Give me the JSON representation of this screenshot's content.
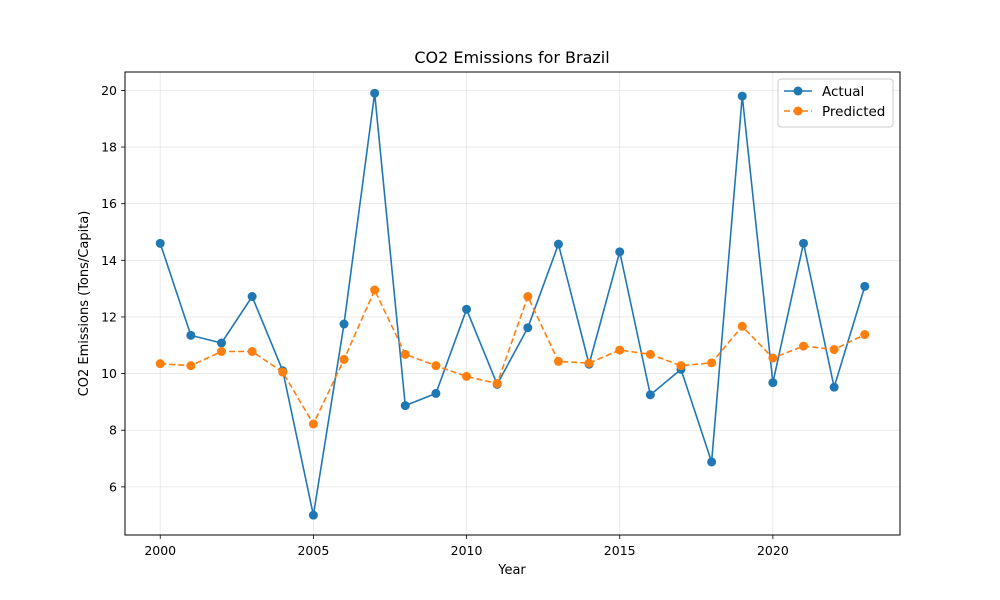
{
  "chart_data": {
    "type": "line",
    "title": "CO2 Emissions for Brazil",
    "xlabel": "Year",
    "ylabel": "CO2 Emissions (Tons/Capita)",
    "xlim": [
      1998.85,
      2024.15
    ],
    "ylim": [
      4.3,
      20.65
    ],
    "xticks": [
      2000,
      2005,
      2010,
      2015,
      2020
    ],
    "yticks": [
      6,
      8,
      10,
      12,
      14,
      16,
      18,
      20
    ],
    "grid": true,
    "legend_position": "top-right",
    "x": [
      2000,
      2001,
      2002,
      2003,
      2004,
      2005,
      2006,
      2007,
      2008,
      2009,
      2010,
      2011,
      2012,
      2013,
      2014,
      2015,
      2016,
      2017,
      2018,
      2019,
      2020,
      2021,
      2022,
      2023
    ],
    "series": [
      {
        "name": "Actual",
        "color": "#1f77b4",
        "line_style": "solid",
        "values": [
          14.6,
          11.35,
          11.08,
          12.72,
          10.1,
          5.0,
          11.75,
          19.9,
          8.87,
          9.3,
          12.27,
          9.62,
          11.62,
          14.57,
          10.33,
          14.3,
          9.25,
          10.15,
          6.88,
          19.8,
          9.68,
          14.6,
          9.52,
          13.08
        ]
      },
      {
        "name": "Predicted",
        "color": "#ff7f0e",
        "line_style": "dashed",
        "values": [
          10.35,
          10.28,
          10.78,
          10.78,
          10.05,
          8.22,
          10.5,
          12.95,
          10.68,
          10.28,
          9.9,
          9.65,
          12.72,
          10.43,
          10.37,
          10.83,
          10.68,
          10.28,
          10.38,
          11.67,
          10.55,
          10.97,
          10.85,
          11.38
        ]
      }
    ]
  }
}
